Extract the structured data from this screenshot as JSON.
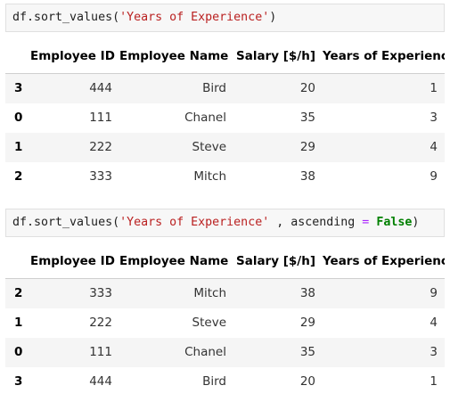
{
  "cells": [
    {
      "code": {
        "prefix": "df.sort_values(",
        "str": "'Years of Experience'",
        "mid": "",
        "kwarg": "",
        "op": "",
        "space": "",
        "kw": "",
        "suffix": ")"
      },
      "headers": [
        "",
        "Employee ID",
        "Employee Name",
        "Salary [$/h]",
        "Years of Experience"
      ],
      "rows": [
        {
          "index": "3",
          "id": "444",
          "name": "Bird",
          "salary": "20",
          "years": "1"
        },
        {
          "index": "0",
          "id": "111",
          "name": "Chanel",
          "salary": "35",
          "years": "3"
        },
        {
          "index": "1",
          "id": "222",
          "name": "Steve",
          "salary": "29",
          "years": "4"
        },
        {
          "index": "2",
          "id": "333",
          "name": "Mitch",
          "salary": "38",
          "years": "9"
        }
      ]
    },
    {
      "code": {
        "prefix": "df.sort_values(",
        "str": "'Years of Experience'",
        "mid": " , ascending ",
        "kwarg": "",
        "op": "=",
        "space": " ",
        "kw": "False",
        "suffix": ")"
      },
      "headers": [
        "",
        "Employee ID",
        "Employee Name",
        "Salary [$/h]",
        "Years of Experience"
      ],
      "rows": [
        {
          "index": "2",
          "id": "333",
          "name": "Mitch",
          "salary": "38",
          "years": "9"
        },
        {
          "index": "1",
          "id": "222",
          "name": "Steve",
          "salary": "29",
          "years": "4"
        },
        {
          "index": "0",
          "id": "111",
          "name": "Chanel",
          "salary": "35",
          "years": "3"
        },
        {
          "index": "3",
          "id": "444",
          "name": "Bird",
          "salary": "20",
          "years": "1"
        }
      ]
    }
  ]
}
